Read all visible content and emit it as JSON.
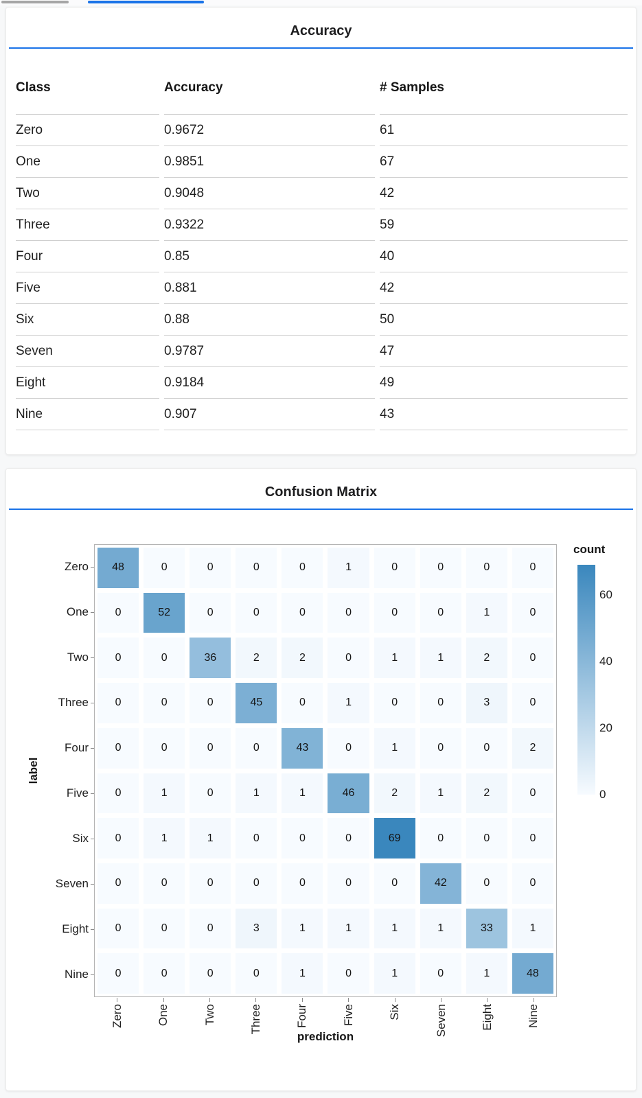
{
  "top_tabs": {
    "inactive_indicator_color": "#a6a6a6",
    "active_indicator_color": "#1a73e8"
  },
  "accent_color": "#1a73e8",
  "chart_data": [
    {
      "type": "table",
      "title": "Accuracy",
      "columns": [
        "Class",
        "Accuracy",
        "# Samples"
      ],
      "rows": [
        [
          "Zero",
          "0.9672",
          "61"
        ],
        [
          "One",
          "0.9851",
          "67"
        ],
        [
          "Two",
          "0.9048",
          "42"
        ],
        [
          "Three",
          "0.9322",
          "59"
        ],
        [
          "Four",
          "0.85",
          "40"
        ],
        [
          "Five",
          "0.881",
          "42"
        ],
        [
          "Six",
          "0.88",
          "50"
        ],
        [
          "Seven",
          "0.9787",
          "47"
        ],
        [
          "Eight",
          "0.9184",
          "49"
        ],
        [
          "Nine",
          "0.907",
          "43"
        ]
      ]
    },
    {
      "type": "heatmap",
      "title": "Confusion Matrix",
      "xlabel": "prediction",
      "ylabel": "label",
      "x_categories": [
        "Zero",
        "One",
        "Two",
        "Three",
        "Four",
        "Five",
        "Six",
        "Seven",
        "Eight",
        "Nine"
      ],
      "y_categories": [
        "Zero",
        "One",
        "Two",
        "Three",
        "Four",
        "Five",
        "Six",
        "Seven",
        "Eight",
        "Nine"
      ],
      "values": [
        [
          48,
          0,
          0,
          0,
          0,
          1,
          0,
          0,
          0,
          0
        ],
        [
          0,
          52,
          0,
          0,
          0,
          0,
          0,
          0,
          1,
          0
        ],
        [
          0,
          0,
          36,
          2,
          2,
          0,
          1,
          1,
          2,
          0
        ],
        [
          0,
          0,
          0,
          45,
          0,
          1,
          0,
          0,
          3,
          0
        ],
        [
          0,
          0,
          0,
          0,
          43,
          0,
          1,
          0,
          0,
          2
        ],
        [
          0,
          1,
          0,
          1,
          1,
          46,
          2,
          1,
          2,
          0
        ],
        [
          0,
          1,
          1,
          0,
          0,
          0,
          69,
          0,
          0,
          0
        ],
        [
          0,
          0,
          0,
          0,
          0,
          0,
          0,
          42,
          0,
          0
        ],
        [
          0,
          0,
          0,
          3,
          1,
          1,
          1,
          1,
          33,
          1
        ],
        [
          0,
          0,
          0,
          0,
          1,
          0,
          1,
          0,
          1,
          48
        ]
      ],
      "legend": {
        "title": "count",
        "ticks": [
          0,
          20,
          40,
          60
        ],
        "domain": [
          0,
          69
        ]
      },
      "colors": {
        "low": "#f7fbff",
        "high": "#3a87bd"
      },
      "grid": true,
      "legend_position": "right"
    }
  ]
}
